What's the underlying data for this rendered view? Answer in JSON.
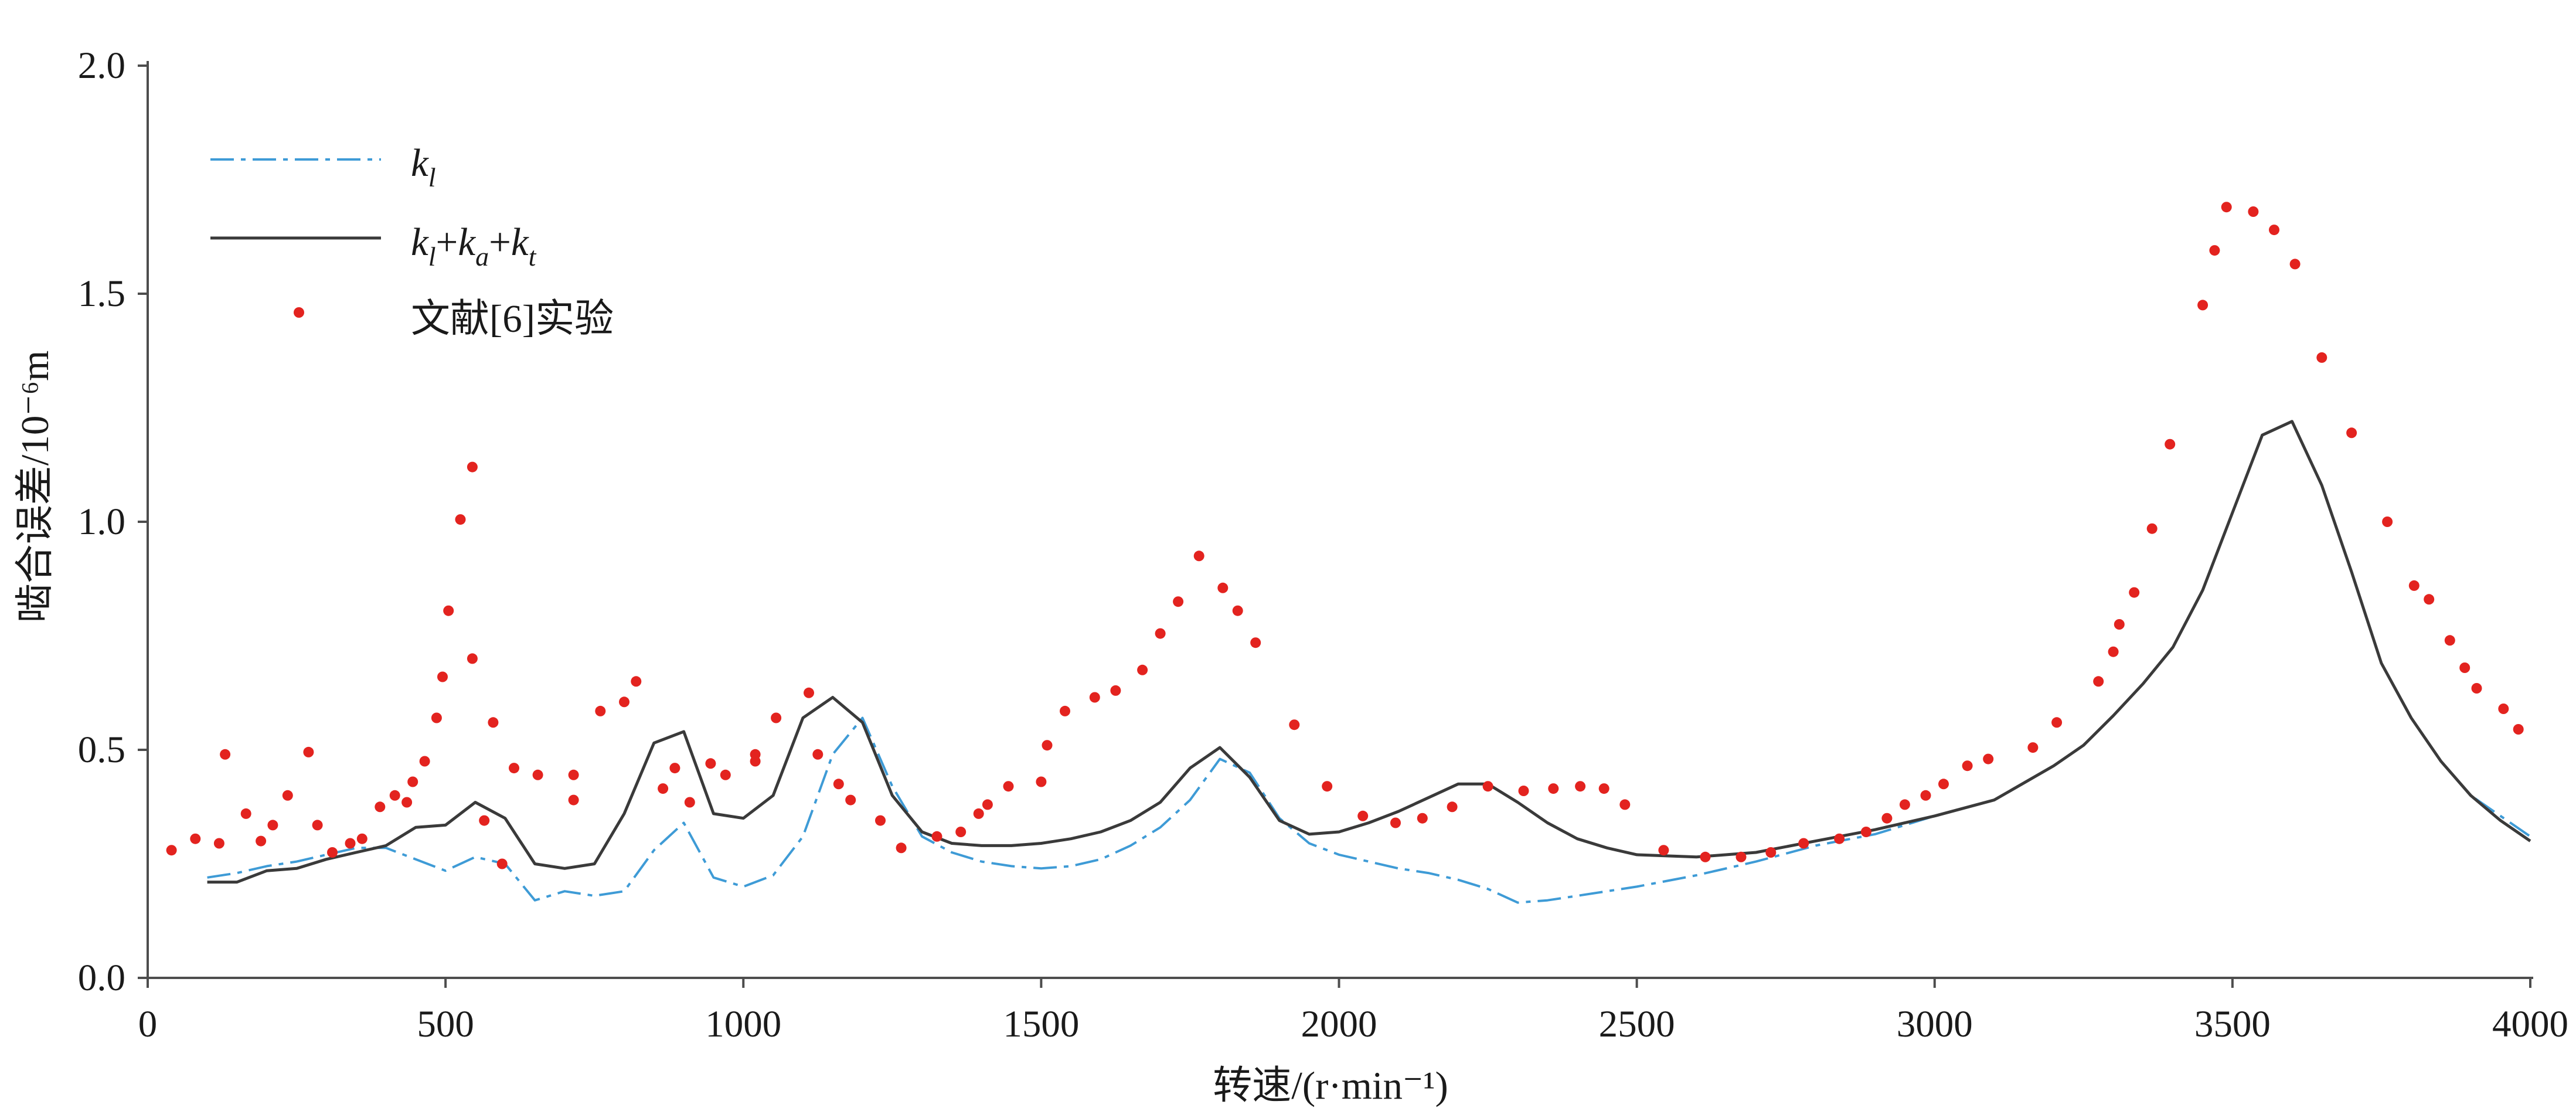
{
  "chart_data": {
    "type": "line",
    "xlabel": "转速/(r·min⁻¹)",
    "ylabel": "啮合误差/10⁻⁶m",
    "xlim": [
      0,
      4000
    ],
    "ylim": [
      0,
      2.0
    ],
    "xticks": [
      0,
      500,
      1000,
      1500,
      2000,
      2500,
      3000,
      3500,
      4000
    ],
    "xtick_labels": [
      "0",
      "500",
      "1000",
      "1500",
      "2000",
      "2500",
      "3000",
      "3500",
      "4000"
    ],
    "yticks": [
      0,
      0.5,
      1.0,
      1.5,
      2.0
    ],
    "ytick_labels": [
      "0.0",
      "0.5",
      "1.0",
      "1.5",
      "2.0"
    ],
    "grid": false,
    "legend_position": "top-left",
    "series": [
      {
        "name": "kl",
        "kind": "line",
        "line_style": "dash-dot",
        "color": "#3e9bd6",
        "x": [
          100,
          150,
          200,
          250,
          300,
          350,
          400,
          450,
          500,
          550,
          600,
          650,
          700,
          750,
          800,
          850,
          900,
          950,
          1000,
          1050,
          1100,
          1150,
          1200,
          1250,
          1300,
          1350,
          1400,
          1450,
          1500,
          1550,
          1600,
          1650,
          1700,
          1750,
          1800,
          1850,
          1900,
          1950,
          2000,
          2050,
          2100,
          2150,
          2200,
          2250,
          2300,
          2350,
          2400,
          2450,
          2500,
          2600,
          2700,
          2800,
          2900,
          3000,
          3100,
          3200,
          3250,
          3300,
          3350,
          3400,
          3450,
          3500,
          3550,
          3600,
          3650,
          3700,
          3750,
          3800,
          3850,
          3900,
          3950,
          4000
        ],
        "y": [
          0.22,
          0.23,
          0.245,
          0.255,
          0.27,
          0.285,
          0.285,
          0.26,
          0.235,
          0.265,
          0.25,
          0.17,
          0.19,
          0.18,
          0.19,
          0.28,
          0.34,
          0.22,
          0.2,
          0.225,
          0.31,
          0.49,
          0.57,
          0.42,
          0.31,
          0.275,
          0.255,
          0.245,
          0.24,
          0.245,
          0.26,
          0.29,
          0.33,
          0.39,
          0.48,
          0.45,
          0.35,
          0.295,
          0.27,
          0.255,
          0.24,
          0.23,
          0.215,
          0.195,
          0.165,
          0.17,
          0.18,
          0.19,
          0.2,
          0.225,
          0.255,
          0.29,
          0.315,
          0.355,
          0.39,
          0.465,
          0.51,
          0.575,
          0.645,
          0.725,
          0.85,
          1.02,
          1.19,
          1.22,
          1.08,
          0.89,
          0.69,
          0.57,
          0.475,
          0.4,
          0.355,
          0.31
        ]
      },
      {
        "name": "kl+ka+kt",
        "kind": "line",
        "line_style": "solid",
        "color": "#3a3a3a",
        "x": [
          100,
          150,
          200,
          250,
          300,
          350,
          400,
          450,
          500,
          550,
          600,
          650,
          700,
          750,
          800,
          850,
          900,
          950,
          1000,
          1050,
          1100,
          1150,
          1200,
          1250,
          1300,
          1350,
          1400,
          1450,
          1500,
          1550,
          1600,
          1650,
          1700,
          1750,
          1800,
          1850,
          1900,
          1950,
          2000,
          2050,
          2100,
          2150,
          2200,
          2250,
          2300,
          2350,
          2400,
          2450,
          2500,
          2600,
          2700,
          2800,
          2900,
          3000,
          3100,
          3200,
          3250,
          3300,
          3350,
          3400,
          3450,
          3500,
          3550,
          3600,
          3650,
          3700,
          3750,
          3800,
          3850,
          3900,
          3950,
          4000
        ],
        "y": [
          0.21,
          0.21,
          0.235,
          0.24,
          0.26,
          0.275,
          0.29,
          0.33,
          0.335,
          0.385,
          0.35,
          0.25,
          0.24,
          0.25,
          0.36,
          0.515,
          0.54,
          0.36,
          0.35,
          0.4,
          0.57,
          0.615,
          0.56,
          0.4,
          0.32,
          0.295,
          0.29,
          0.29,
          0.295,
          0.305,
          0.32,
          0.345,
          0.385,
          0.46,
          0.505,
          0.44,
          0.345,
          0.315,
          0.32,
          0.34,
          0.365,
          0.395,
          0.425,
          0.425,
          0.385,
          0.34,
          0.305,
          0.285,
          0.27,
          0.265,
          0.275,
          0.3,
          0.325,
          0.355,
          0.39,
          0.465,
          0.51,
          0.575,
          0.645,
          0.725,
          0.85,
          1.02,
          1.19,
          1.22,
          1.08,
          0.89,
          0.69,
          0.57,
          0.475,
          0.4,
          0.345,
          0.3
        ]
      },
      {
        "name": "文献[6]实验",
        "kind": "scatter",
        "marker": "dot",
        "color": "#e3231f",
        "x": [
          40,
          80,
          120,
          130,
          165,
          190,
          210,
          235,
          270,
          285,
          310,
          340,
          360,
          390,
          415,
          435,
          445,
          465,
          485,
          495,
          505,
          525,
          545,
          545,
          565,
          580,
          595,
          615,
          655,
          715,
          715,
          760,
          800,
          820,
          865,
          885,
          910,
          945,
          970,
          1020,
          1020,
          1055,
          1110,
          1125,
          1160,
          1180,
          1230,
          1265,
          1325,
          1365,
          1395,
          1410,
          1445,
          1500,
          1510,
          1540,
          1590,
          1625,
          1670,
          1700,
          1730,
          1765,
          1805,
          1830,
          1860,
          1925,
          1980,
          2040,
          2095,
          2140,
          2190,
          2250,
          2310,
          2360,
          2405,
          2445,
          2480,
          2545,
          2615,
          2675,
          2725,
          2780,
          2840,
          2885,
          2920,
          2950,
          2985,
          3015,
          3055,
          3090,
          3165,
          3205,
          3275,
          3300,
          3310,
          3335,
          3365,
          3395,
          3450,
          3470,
          3490,
          3535,
          3570,
          3605,
          3650,
          3700,
          3760,
          3805,
          3830,
          3865,
          3890,
          3910,
          3955,
          3980
        ],
        "y": [
          0.28,
          0.305,
          0.295,
          0.49,
          0.36,
          0.3,
          0.335,
          0.4,
          0.495,
          0.335,
          0.275,
          0.295,
          0.305,
          0.375,
          0.4,
          0.385,
          0.43,
          0.475,
          0.57,
          0.66,
          0.805,
          1.005,
          1.12,
          0.7,
          0.345,
          0.56,
          0.25,
          0.46,
          0.445,
          0.445,
          0.39,
          0.585,
          0.605,
          0.65,
          0.415,
          0.46,
          0.385,
          0.47,
          0.445,
          0.49,
          0.475,
          0.57,
          0.625,
          0.49,
          0.425,
          0.39,
          0.345,
          0.285,
          0.31,
          0.32,
          0.36,
          0.38,
          0.42,
          0.43,
          0.51,
          0.585,
          0.615,
          0.63,
          0.675,
          0.755,
          0.825,
          0.925,
          0.855,
          0.805,
          0.735,
          0.555,
          0.42,
          0.355,
          0.34,
          0.35,
          0.375,
          0.42,
          0.41,
          0.415,
          0.42,
          0.415,
          0.38,
          0.28,
          0.265,
          0.265,
          0.275,
          0.295,
          0.305,
          0.32,
          0.35,
          0.38,
          0.4,
          0.425,
          0.465,
          0.48,
          0.505,
          0.56,
          0.65,
          0.715,
          0.775,
          0.845,
          0.985,
          1.17,
          1.475,
          1.595,
          1.69,
          1.68,
          1.64,
          1.565,
          1.36,
          1.195,
          1.0,
          0.86,
          0.83,
          0.74,
          0.68,
          0.635,
          0.59,
          0.545
        ]
      }
    ]
  }
}
